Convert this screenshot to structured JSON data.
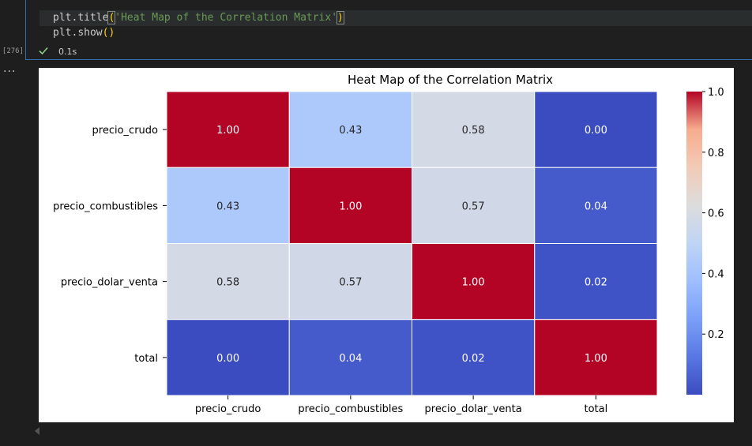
{
  "code": {
    "line1": {
      "obj": "plt",
      "method": "title",
      "open": "(",
      "arg": "'Heat Map of the Correlation Matrix'",
      "close": ")"
    },
    "line2": {
      "obj": "plt",
      "method": "show",
      "open": "(",
      "close": ")"
    }
  },
  "cell": {
    "execution_count": "[276]",
    "status_icon": "check-icon",
    "exec_time": "0.1s",
    "more_icon": "ellipsis-icon"
  },
  "colors": {
    "code_paren": "#ffd700",
    "code_string": "#6a9955",
    "success_check": "#89d185",
    "cell_border": "#2f6fb0"
  },
  "chart_data": {
    "type": "heatmap",
    "title": "Heat Map of the Correlation Matrix",
    "rows": [
      "precio_crudo",
      "precio_combustibles",
      "precio_dolar_venta",
      "total"
    ],
    "cols": [
      "precio_crudo",
      "precio_combustibles",
      "precio_dolar_venta",
      "total"
    ],
    "values": [
      [
        1.0,
        0.43,
        0.58,
        0.0
      ],
      [
        0.43,
        1.0,
        0.57,
        0.04
      ],
      [
        0.58,
        0.57,
        1.0,
        0.02
      ],
      [
        0.0,
        0.04,
        0.02,
        1.0
      ]
    ],
    "value_format": "2 decimals",
    "colormap": "coolwarm",
    "vmin": 0.0,
    "vmax": 1.0,
    "colorbar_ticks": [
      "1.0",
      "0.8",
      "0.6",
      "0.4",
      "0.2"
    ],
    "colorbar_tick_values": [
      1.0,
      0.8,
      0.6,
      0.4,
      0.2
    ],
    "grid_lines": "white",
    "legend": "colorbar right"
  }
}
